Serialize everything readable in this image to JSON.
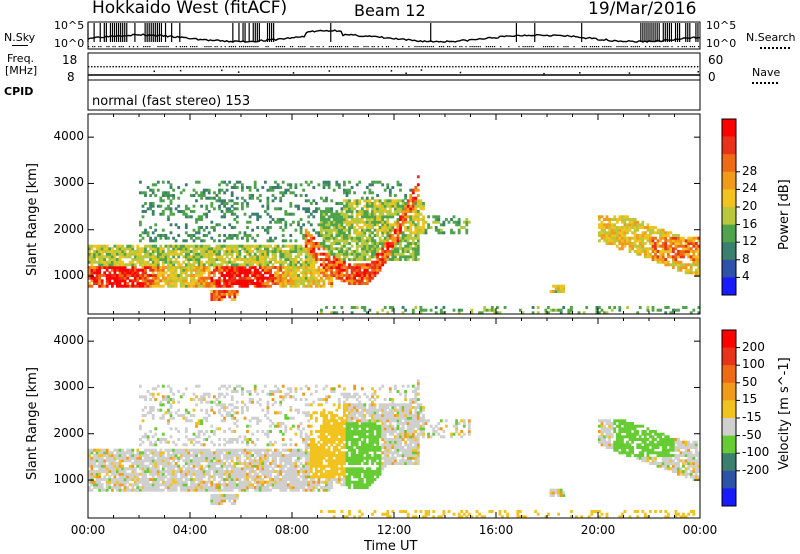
{
  "header": {
    "radar": "Hokkaido West (fitACF)",
    "beam": "Beam 12",
    "date": "19/Mar/2016"
  },
  "top_panels": {
    "nsky_label": "N.Sky",
    "nsky_top": "10^5",
    "nsky_bottom": "10^0",
    "nsearch_label": "N.Search",
    "nsearch_top": "10^5",
    "nsearch_bottom": "10^0",
    "freq_label_1": "Freq.",
    "freq_label_2": "[MHz]",
    "freq_top": "18",
    "freq_bottom": "8",
    "nave_label": "Nave",
    "nave_top": "60",
    "nave_bottom": "0",
    "cpid_label": "CPID",
    "cpid_value": "normal (fast stereo) 153"
  },
  "chart_data": [
    {
      "type": "heatmap",
      "panel": "power",
      "ylabel": "Slant Range [km]",
      "xlabel": "Time UT",
      "xlim": [
        0,
        24
      ],
      "ylim": [
        180,
        4500
      ],
      "x_tick_labels": [
        "00:00",
        "04:00",
        "08:00",
        "12:00",
        "16:00",
        "20:00",
        "00:00"
      ],
      "y_ticks": [
        1000,
        2000,
        3000,
        4000
      ],
      "y_tick_labels": [
        "1000",
        "2000",
        "3000",
        "4000"
      ],
      "colorbar": {
        "label": "Power [dB]",
        "tick_labels": [
          "4",
          "8",
          "12",
          "16",
          "20",
          "24",
          "28"
        ],
        "colors": [
          "#1a1aff",
          "#2d52a8",
          "#3b7f6e",
          "#4fa34a",
          "#b8c83a",
          "#f2c21e",
          "#f29a1a",
          "#ef6a14",
          "#e8331a",
          "#ff0000"
        ]
      },
      "regions": [
        {
          "name": "main band",
          "t": [
            0,
            9.5
          ],
          "range": [
            750,
            1150
          ],
          "level": "high"
        },
        {
          "name": "upper band",
          "t": [
            0,
            9
          ],
          "range": [
            1150,
            1650
          ],
          "level": "medium"
        },
        {
          "name": "scatter",
          "t": [
            2,
            13
          ],
          "range": [
            1800,
            3050
          ],
          "level": "low"
        },
        {
          "name": "arc",
          "t": [
            9,
            13
          ],
          "range": [
            750,
            2300
          ],
          "level": "high"
        },
        {
          "name": "short range",
          "t": [
            4.8,
            5.8
          ],
          "range": [
            450,
            650
          ],
          "level": "high"
        },
        {
          "name": "late echo",
          "t": [
            20,
            24
          ],
          "range": [
            800,
            2300
          ],
          "level": "medium"
        }
      ]
    },
    {
      "type": "heatmap",
      "panel": "velocity",
      "ylabel": "Slant Range [km]",
      "xlabel": "Time UT",
      "xlim": [
        0,
        24
      ],
      "ylim": [
        180,
        4500
      ],
      "x_tick_labels": [
        "00:00",
        "04:00",
        "08:00",
        "12:00",
        "16:00",
        "20:00",
        "00:00"
      ],
      "y_ticks": [
        1000,
        2000,
        3000,
        4000
      ],
      "y_tick_labels": [
        "1000",
        "2000",
        "3000",
        "4000"
      ],
      "colorbar": {
        "label": "Velocity [m s^-1]",
        "tick_labels": [
          "200",
          "100",
          "50",
          "15",
          "-15",
          "-50",
          "-100",
          "-200"
        ],
        "colors": [
          "#1a1aff",
          "#2d52a8",
          "#3b7f6e",
          "#66cc33",
          "#cfcfcf",
          "#f2c21e",
          "#f29a1a",
          "#ef6a14",
          "#e8331a",
          "#ff0000"
        ]
      }
    }
  ],
  "xaxis": {
    "label": "Time UT"
  }
}
